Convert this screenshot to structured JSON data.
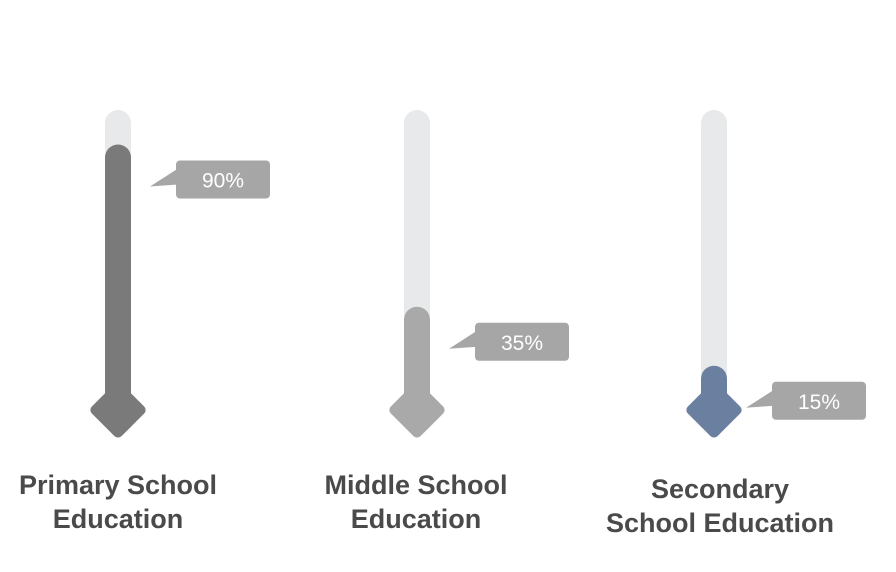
{
  "chart_data": {
    "type": "bar",
    "categories": [
      [
        "Primary School",
        "Education"
      ],
      [
        "Middle School",
        "Education"
      ],
      [
        "Secondary",
        "School Education"
      ]
    ],
    "values": [
      90,
      35,
      15
    ],
    "value_labels": [
      "90%",
      "35%",
      "15%"
    ],
    "ylim": [
      0,
      100
    ],
    "colors": [
      "#7a7a7a",
      "#a9a9a9",
      "#6b7fa0"
    ],
    "track_color": "#e8e9ea",
    "label_box_color": "#a6a6a6"
  }
}
